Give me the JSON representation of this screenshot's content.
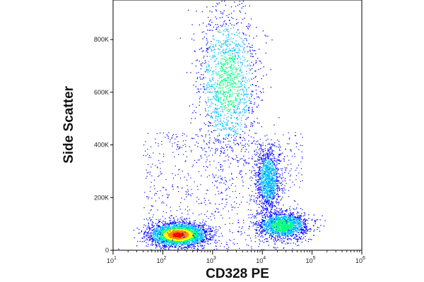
{
  "chart_data": {
    "type": "scatter",
    "subtype": "flow-cytometry-density-dot-plot",
    "title": "",
    "xlabel": "CD328 PE",
    "ylabel": "Side Scatter",
    "x_scale": "log",
    "y_scale": "linear",
    "xlim": [
      10,
      1000000
    ],
    "ylim": [
      0,
      950000
    ],
    "x_ticks": [
      {
        "value": 10,
        "base": "10",
        "exp": "1"
      },
      {
        "value": 100,
        "base": "10",
        "exp": "2"
      },
      {
        "value": 1000,
        "base": "10",
        "exp": "3"
      },
      {
        "value": 10000,
        "base": "10",
        "exp": "4"
      },
      {
        "value": 100000,
        "base": "10",
        "exp": "5"
      },
      {
        "value": 1000000,
        "base": "10",
        "exp": "6"
      }
    ],
    "y_ticks": [
      {
        "value": 0,
        "label": "0"
      },
      {
        "value": 200000,
        "label": "200K"
      },
      {
        "value": 400000,
        "label": "400K"
      },
      {
        "value": 600000,
        "label": "600K"
      },
      {
        "value": 800000,
        "label": "800K"
      }
    ],
    "grid": false,
    "legend": "none",
    "color_scale": [
      "#0000ff",
      "#00bfff",
      "#00ff80",
      "#ffff00",
      "#ff8000",
      "#ff0000"
    ],
    "populations": [
      {
        "x_center": 200,
        "x_spread_decades": 0.28,
        "y_center": 60000,
        "y_spread": 22000,
        "relative_density": 1.0
      },
      {
        "x_center": 2000,
        "x_spread_decades": 0.3,
        "y_center": 640000,
        "y_spread": 140000,
        "relative_density": 0.45
      },
      {
        "x_center": 13000,
        "x_spread_decades": 0.12,
        "y_center": 270000,
        "y_spread": 60000,
        "relative_density": 0.3
      },
      {
        "x_center": 25000,
        "x_spread_decades": 0.25,
        "y_center": 95000,
        "y_spread": 25000,
        "relative_density": 0.5
      }
    ]
  }
}
